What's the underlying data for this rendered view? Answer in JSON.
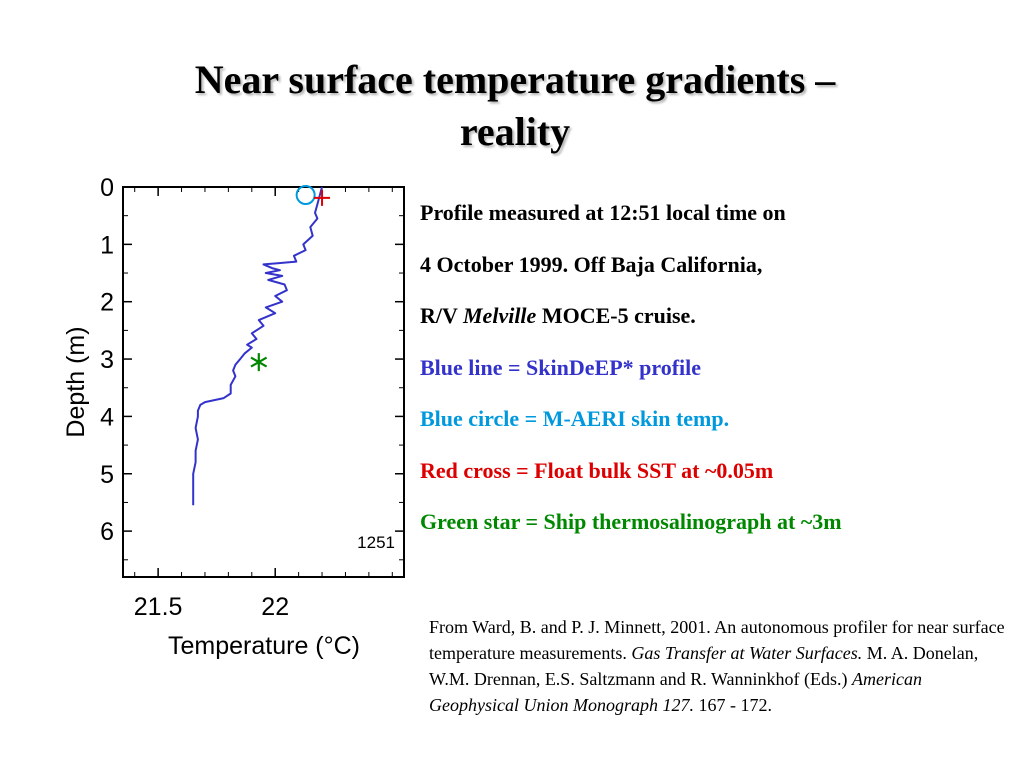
{
  "slide": {
    "title_line1": "Near surface temperature gradients –",
    "title_line2": "reality"
  },
  "info": {
    "line1": "Profile measured at 12:51 local time on",
    "line2": "4 October 1999.  Off Baja California,",
    "line3_pre": "R/V ",
    "line3_italic": "Melville",
    "line3_post": " MOCE-5 cruise.",
    "blue_line": "Blue line = SkinDeEP* profile",
    "blue_circle": "Blue circle = M-AERI skin temp.",
    "red_cross": "Red cross = Float bulk SST at ~0.05m",
    "green_star": "Green star = Ship thermosalinograph at ~3m"
  },
  "colors": {
    "blue_line": "#3333cc",
    "blue_circle": "#0099dd",
    "red_cross": "#dd0000",
    "green_star": "#008800"
  },
  "citation": {
    "p1": "From  Ward, B. and P. J. Minnett, 2001. An autonomous profiler for near surface temperature measurements. ",
    "i1": "Gas Transfer at Water Surfaces.",
    "p2": " M. A. Donelan, W.M. Drennan, E.S. Saltzmann and R. Wanninkhof (Eds.) ",
    "i2": "American Geophysical Union Monograph 127.",
    "p3": " 167 - 172."
  },
  "chart_data": {
    "type": "line",
    "xlabel": "Temperature (°C)",
    "ylabel": "Depth (m)",
    "xlim": [
      21.35,
      22.55
    ],
    "ylim": [
      0,
      6.8
    ],
    "y_inverted": true,
    "x_ticks": [
      21.5,
      22
    ],
    "x_tick_labels": [
      "21.5",
      "22"
    ],
    "y_ticks": [
      0,
      1,
      2,
      3,
      4,
      5,
      6
    ],
    "y_tick_labels": [
      "0",
      "1",
      "2",
      "3",
      "4",
      "5",
      "6"
    ],
    "annotation": "1251",
    "series": [
      {
        "kind": "profile",
        "points": [
          [
            22.2,
            0.0
          ],
          [
            22.19,
            0.15
          ],
          [
            22.18,
            0.3
          ],
          [
            22.17,
            0.45
          ],
          [
            22.18,
            0.55
          ],
          [
            22.15,
            0.7
          ],
          [
            22.16,
            0.85
          ],
          [
            22.12,
            1.0
          ],
          [
            22.13,
            1.1
          ],
          [
            22.08,
            1.2
          ],
          [
            22.09,
            1.3
          ],
          [
            22.01,
            1.33
          ],
          [
            21.95,
            1.35
          ],
          [
            21.99,
            1.42
          ],
          [
            22.02,
            1.45
          ],
          [
            21.96,
            1.5
          ],
          [
            22.03,
            1.55
          ],
          [
            21.97,
            1.62
          ],
          [
            22.04,
            1.7
          ],
          [
            22.05,
            1.8
          ],
          [
            22.0,
            1.9
          ],
          [
            22.03,
            2.0
          ],
          [
            21.96,
            2.1
          ],
          [
            22.0,
            2.2
          ],
          [
            21.93,
            2.32
          ],
          [
            21.95,
            2.42
          ],
          [
            21.9,
            2.55
          ],
          [
            21.92,
            2.65
          ],
          [
            21.88,
            2.75
          ],
          [
            21.9,
            2.8
          ],
          [
            21.87,
            2.9
          ],
          [
            21.85,
            3.0
          ],
          [
            21.83,
            3.1
          ],
          [
            21.82,
            3.2
          ],
          [
            21.83,
            3.3
          ],
          [
            21.81,
            3.45
          ],
          [
            21.81,
            3.6
          ],
          [
            21.78,
            3.68
          ],
          [
            21.7,
            3.75
          ],
          [
            21.68,
            3.8
          ],
          [
            21.67,
            3.9
          ],
          [
            21.67,
            4.0
          ],
          [
            21.66,
            4.2
          ],
          [
            21.67,
            4.4
          ],
          [
            21.66,
            4.6
          ],
          [
            21.66,
            4.8
          ],
          [
            21.65,
            5.0
          ],
          [
            21.65,
            5.2
          ],
          [
            21.65,
            5.4
          ],
          [
            21.65,
            5.55
          ]
        ]
      },
      {
        "kind": "skin-temp",
        "marker": "circle",
        "points": [
          [
            22.13,
            0.0
          ]
        ]
      },
      {
        "kind": "bulk-sst",
        "marker": "cross",
        "points": [
          [
            22.2,
            0.05
          ]
        ]
      },
      {
        "kind": "thermosalinograph",
        "marker": "star",
        "points": [
          [
            21.93,
            3.0
          ]
        ]
      }
    ]
  }
}
